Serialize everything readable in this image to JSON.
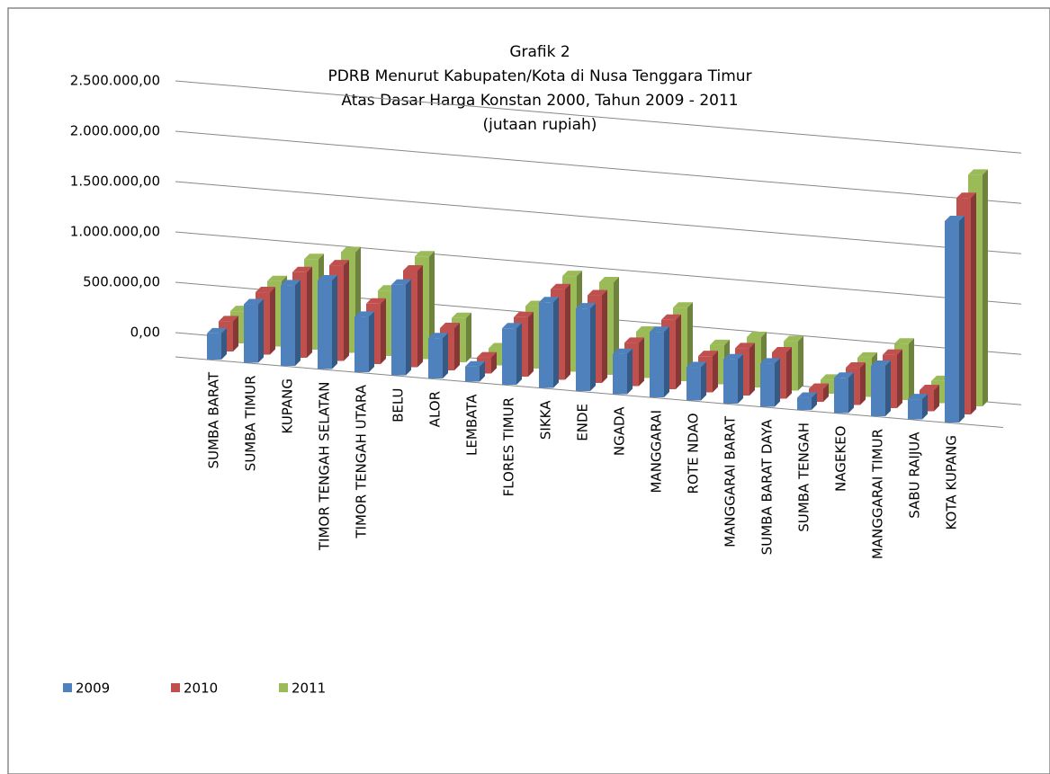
{
  "chart_data": {
    "type": "bar3d",
    "title": [
      "Grafik 2",
      "PDRB Menurut Kabupaten/Kota di Nusa Tenggara Timur",
      "Atas Dasar Harga Konstan 2000, Tahun 2009 - 2011",
      "(jutaan rupiah)"
    ],
    "categories": [
      "SUMBA BARAT",
      "SUMBA TIMUR",
      "KUPANG",
      "TIMOR TENGAH SELATAN",
      "TIMOR TENGAH UTARA",
      "BELU",
      "ALOR",
      "LEMBATA",
      "FLORES TIMUR",
      "SIKKA",
      "ENDE",
      "NGADA",
      "MANGGARAI",
      "ROTE NDAO",
      "MANGGARAI BARAT",
      "SUMBA BARAT DAYA",
      "SUMBA TENGAH",
      "NAGEKEO",
      "MANGGARAI TIMUR",
      "SABU RAIJUA",
      "KOTA KUPANG"
    ],
    "series": [
      {
        "name": "2009",
        "color": "#4f81bd",
        "values": [
          260000,
          580000,
          800000,
          880000,
          550000,
          900000,
          400000,
          150000,
          560000,
          850000,
          820000,
          400000,
          650000,
          330000,
          440000,
          430000,
          120000,
          350000,
          500000,
          200000,
          2000000
        ]
      },
      {
        "name": "2010",
        "color": "#c0504d",
        "values": [
          300000,
          620000,
          850000,
          950000,
          600000,
          960000,
          420000,
          160000,
          590000,
          900000,
          870000,
          430000,
          690000,
          360000,
          470000,
          460000,
          130000,
          370000,
          530000,
          210000,
          2150000
        ]
      },
      {
        "name": "2011",
        "color": "#9bbb59",
        "values": [
          320000,
          650000,
          900000,
          1000000,
          650000,
          1020000,
          440000,
          170000,
          620000,
          950000,
          920000,
          460000,
          730000,
          390000,
          500000,
          490000,
          140000,
          390000,
          560000,
          220000,
          2300000
        ]
      }
    ],
    "ylim": [
      0,
      2500000
    ],
    "yticks": [
      {
        "value": 0,
        "label": "0,00"
      },
      {
        "value": 500000,
        "label": "500.000,00"
      },
      {
        "value": 1000000,
        "label": "1.000.000,00"
      },
      {
        "value": 1500000,
        "label": "1.500.000,00"
      },
      {
        "value": 2000000,
        "label": "2.000.000,00"
      },
      {
        "value": 2500000,
        "label": "2.500.000,00"
      }
    ],
    "grid": true,
    "legend": "bottom-left"
  }
}
